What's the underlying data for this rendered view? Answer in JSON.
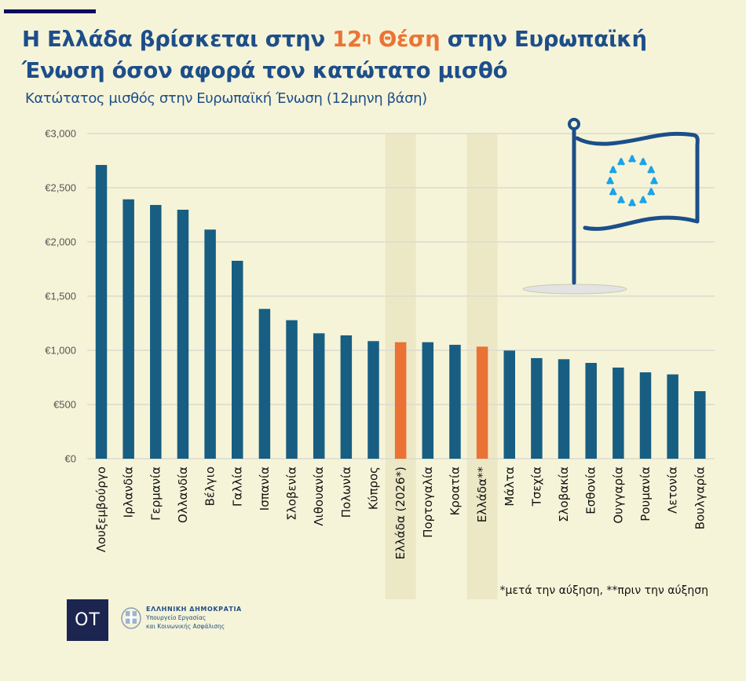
{
  "header": {
    "title_part1": "Η Ελλάδα βρίσκεται στην ",
    "title_rank": "12",
    "title_rank_sup": "η",
    "title_highlight": "Θέση",
    "title_part2": " στην Ευρωπαϊκή Ένωση όσον αφορά τον κατώτατο μισθό",
    "subtitle": "Κατώτατος μισθός στην Ευρωπαϊκή Ένωση (12μηνη βάση)"
  },
  "colors": {
    "bar": "#175e82",
    "highlight_bar": "#e97234",
    "highlight_band": "#ece8c6",
    "title": "#1d4e8a",
    "accent": "#ea7436"
  },
  "chart_data": {
    "type": "bar",
    "title": "Κατώτατος μισθός στην Ευρωπαϊκή Ένωση (12μηνη βάση)",
    "xlabel": "",
    "ylabel": "",
    "ylim": [
      0,
      3000
    ],
    "yticks": [
      0,
      500,
      1000,
      1500,
      2000,
      2500,
      3000
    ],
    "ytick_labels": [
      "€0",
      "€500",
      "€1,000",
      "€1,500",
      "€2,000",
      "€2,500",
      "€3,000"
    ],
    "grid": true,
    "categories": [
      "Λουξεμβούργο",
      "Ιρλανδία",
      "Γερμανία",
      "Ολλανδία",
      "Βέλγιο",
      "Γαλλία",
      "Ισπανία",
      "Σλοβενία",
      "Λιθουανία",
      "Πολωνία",
      "Κύπρος",
      "Ελλάδα (2026*)",
      "Πορτογαλία",
      "Κροατία",
      "Ελλάδα**",
      "Μάλτα",
      "Τσεχία",
      "Σλοβακία",
      "Εσθονία",
      "Ουγγαρία",
      "Ρουμανία",
      "Λετονία",
      "Βουλγαρία"
    ],
    "values": [
      2710,
      2393,
      2341,
      2297,
      2114,
      1826,
      1382,
      1278,
      1157,
      1138,
      1085,
      1075,
      1075,
      1051,
      1034,
      998,
      928,
      918,
      884,
      841,
      797,
      778,
      623
    ],
    "highlighted": [
      "Ελλάδα (2026*)",
      "Ελλάδα**"
    ],
    "footnote": "*μετά την αύξηση, **πριν την αύξηση"
  },
  "footer": {
    "logo_text": "OT",
    "ministry_line1": "ΕΛΛΗΝΙΚΗ ΔΗΜΟΚΡΑΤΙΑ",
    "ministry_line2": "Υπουργείο Εργασίας",
    "ministry_line3": "και Κοινωνικής Ασφάλισης"
  },
  "icons": {
    "flag": "eu-flag-icon",
    "emblem": "greek-coat-of-arms-icon"
  }
}
